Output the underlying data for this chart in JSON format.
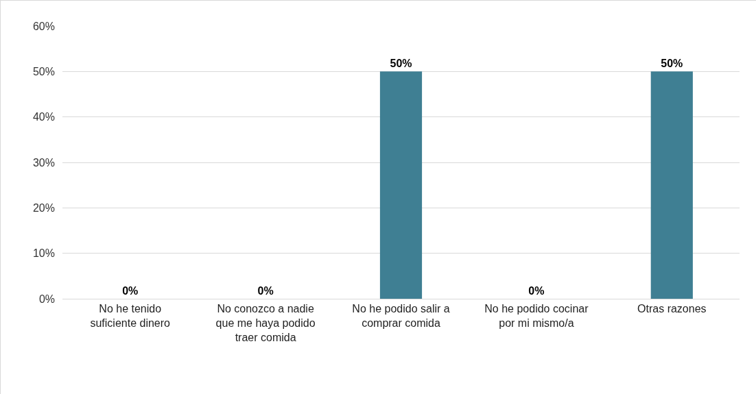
{
  "chart_data": {
    "type": "bar",
    "categories": [
      "No he tenido suficiente dinero",
      "No conozco a nadie que me haya podido traer comida",
      "No he podido salir a comprar comida",
      "No he podido cocinar por mi mismo/a",
      "Otras razones"
    ],
    "values": [
      0,
      0,
      50,
      0,
      50
    ],
    "value_labels": [
      "0%",
      "0%",
      "50%",
      "0%",
      "50%"
    ],
    "color": "#3f7f93",
    "ylim": [
      0,
      60
    ],
    "yticks": [
      {
        "value": 0,
        "label": "0%"
      },
      {
        "value": 10,
        "label": "10%"
      },
      {
        "value": 20,
        "label": "20%"
      },
      {
        "value": 30,
        "label": "30%"
      },
      {
        "value": 40,
        "label": "40%"
      },
      {
        "value": 50,
        "label": "50%"
      },
      {
        "value": 60,
        "label": "60%"
      }
    ],
    "grid": "y"
  }
}
